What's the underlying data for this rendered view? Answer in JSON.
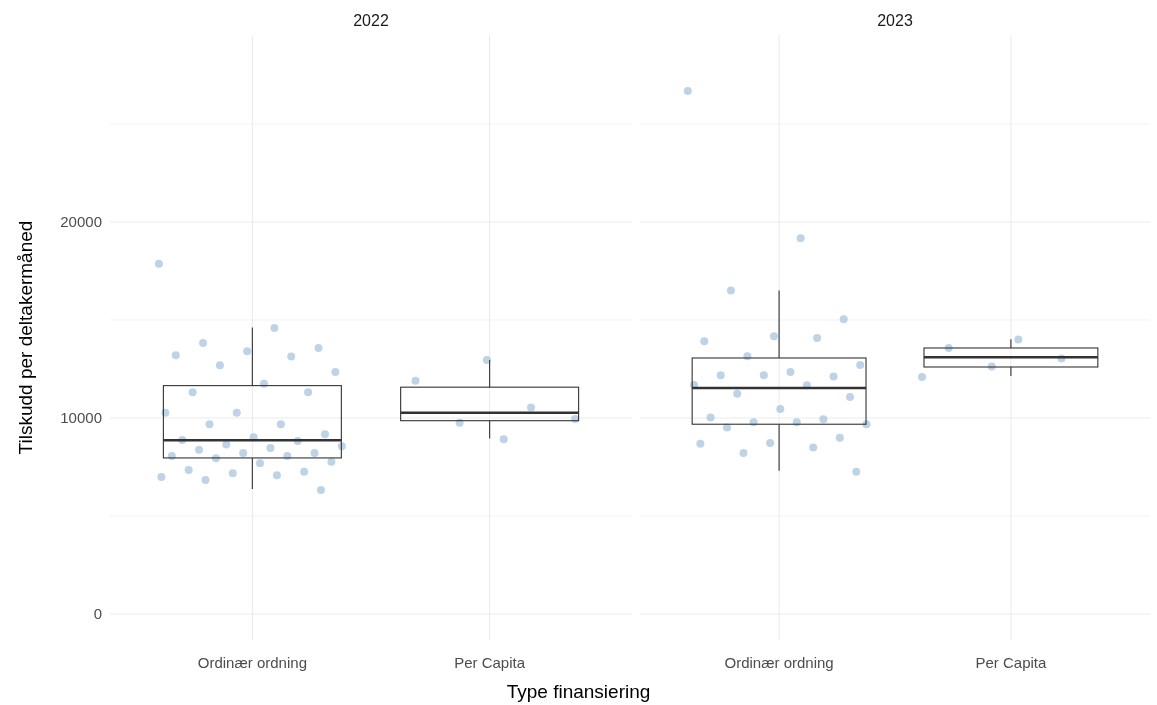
{
  "chart_data": [
    {
      "type": "box",
      "title": "2022",
      "xlabel": "Type finansiering",
      "ylabel": "Tilskudd per deltakermåned",
      "categories": [
        "Ordinær ordning",
        "Per Capita"
      ],
      "ylim": [
        -1330,
        29540
      ],
      "yticks": [
        0,
        {
          "value": 5000,
          "label": null
        },
        10000,
        {
          "value": 15000,
          "label": null
        },
        20000,
        {
          "value": 25000,
          "label": null
        }
      ],
      "grid": true,
      "boxes": [
        {
          "low": 6380,
          "q1": 7960,
          "median": 8860,
          "q3": 11650,
          "high": 14610
        },
        {
          "low": 8950,
          "q1": 9860,
          "median": 10270,
          "q3": 11570,
          "high": 12960
        }
      ],
      "series": [
        {
          "type": "scatter",
          "color": "#a9c4de",
          "x": [
            "Ordinær ordning",
            "Ordinær ordning",
            "Ordinær ordning",
            "Ordinær ordning",
            "Ordinær ordning",
            "Ordinær ordning",
            "Ordinær ordning",
            "Ordinær ordning",
            "Ordinær ordning",
            "Ordinær ordning",
            "Ordinær ordning",
            "Ordinær ordning",
            "Ordinær ordning",
            "Ordinær ordning",
            "Ordinær ordning",
            "Ordinær ordning",
            "Ordinær ordning",
            "Ordinær ordning",
            "Ordinær ordning",
            "Ordinær ordning",
            "Ordinær ordning",
            "Ordinær ordning",
            "Ordinær ordning",
            "Ordinær ordning",
            "Ordinær ordning",
            "Ordinær ordning",
            "Ordinær ordning",
            "Ordinær ordning",
            "Ordinær ordning",
            "Ordinær ordning",
            "Ordinær ordning",
            "Ordinær ordning",
            "Ordinær ordning",
            "Ordinær ordning",
            "Ordinær ordning",
            "Ordinær ordning",
            "Ordinær ordning",
            "Ordinær ordning",
            "Per Capita",
            "Per Capita",
            "Per Capita",
            "Per Capita",
            "Per Capita",
            "Per Capita"
          ],
          "values": [
            17870,
            14590,
            13830,
            13570,
            13400,
            13200,
            13130,
            12690,
            12350,
            11750,
            11310,
            11310,
            10270,
            10270,
            9680,
            9680,
            9170,
            9010,
            8880,
            8830,
            8640,
            8550,
            8470,
            8380,
            8210,
            8210,
            8060,
            8060,
            7940,
            7770,
            7690,
            7350,
            7260,
            7180,
            6990,
            7080,
            6840,
            6330,
            12960,
            11900,
            10530,
            9760,
            9950,
            8910
          ]
        }
      ]
    },
    {
      "type": "box",
      "title": "2023",
      "categories": [
        "Ordinær ordning",
        "Per Capita"
      ],
      "ylim": [
        -1330,
        29540
      ],
      "yticks": [
        0,
        {
          "value": 5000,
          "label": null
        },
        10000,
        {
          "value": 15000,
          "label": null
        },
        20000,
        {
          "value": 25000,
          "label": null
        }
      ],
      "grid": true,
      "tick_labels": "x",
      "boxes": [
        {
          "low": 7310,
          "q1": 9680,
          "median": 11530,
          "q3": 13060,
          "high": 16500
        },
        {
          "low": 12140,
          "q1": 12600,
          "median": 13100,
          "q3": 13570,
          "high": 14010
        }
      ],
      "series": [
        {
          "type": "scatter",
          "color": "#a9c4de",
          "x": [
            "Ordinær ordning",
            "Ordinær ordning",
            "Ordinær ordning",
            "Ordinær ordning",
            "Ordinær ordning",
            "Ordinær ordning",
            "Ordinær ordning",
            "Ordinær ordning",
            "Ordinær ordning",
            "Ordinær ordning",
            "Ordinær ordning",
            "Ordinær ordning",
            "Ordinær ordning",
            "Ordinær ordning",
            "Ordinær ordning",
            "Ordinær ordning",
            "Ordinær ordning",
            "Ordinær ordning",
            "Ordinær ordning",
            "Ordinær ordning",
            "Ordinær ordning",
            "Ordinær ordning",
            "Ordinær ordning",
            "Ordinær ordning",
            "Ordinær ordning",
            "Ordinær ordning",
            "Ordinær ordning",
            "Ordinær ordning",
            "Ordinær ordning",
            "Ordinær ordning",
            "Per Capita",
            "Per Capita",
            "Per Capita",
            "Per Capita",
            "Per Capita"
          ],
          "values": [
            26680,
            19170,
            16500,
            15030,
            14170,
            13910,
            14080,
            13150,
            12700,
            12350,
            12180,
            12110,
            12180,
            11680,
            11670,
            11240,
            11070,
            10460,
            10020,
            9930,
            9780,
            9680,
            9780,
            9510,
            8990,
            8720,
            8680,
            8490,
            8210,
            7260,
            14000,
            13570,
            13030,
            12620,
            12090
          ]
        }
      ]
    }
  ]
}
